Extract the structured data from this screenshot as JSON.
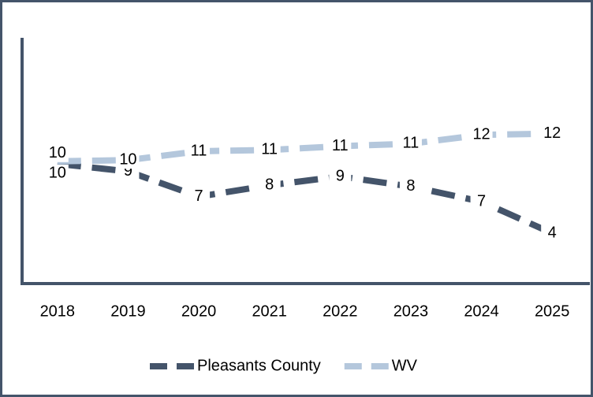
{
  "chart_data": {
    "type": "line",
    "categories": [
      "2018",
      "2019",
      "2020",
      "2021",
      "2022",
      "2023",
      "2024",
      "2025"
    ],
    "series": [
      {
        "name": "Pleasants County",
        "color": "#44546a",
        "values": [
          9.5,
          8.9,
          6.9,
          7.8,
          8.5,
          7.7,
          6.5,
          4.0
        ],
        "value_labels": [
          "10",
          "9",
          "7",
          "8",
          "9",
          "8",
          "7",
          "4"
        ]
      },
      {
        "name": "WV",
        "color": "#b4c7dc",
        "values": [
          9.7,
          9.8,
          10.5,
          10.6,
          10.9,
          11.1,
          11.8,
          11.9
        ],
        "value_labels": [
          "10",
          "10",
          "11",
          "11",
          "11",
          "11",
          "12",
          "12"
        ]
      }
    ],
    "ylim": [
      0,
      19.5
    ]
  }
}
